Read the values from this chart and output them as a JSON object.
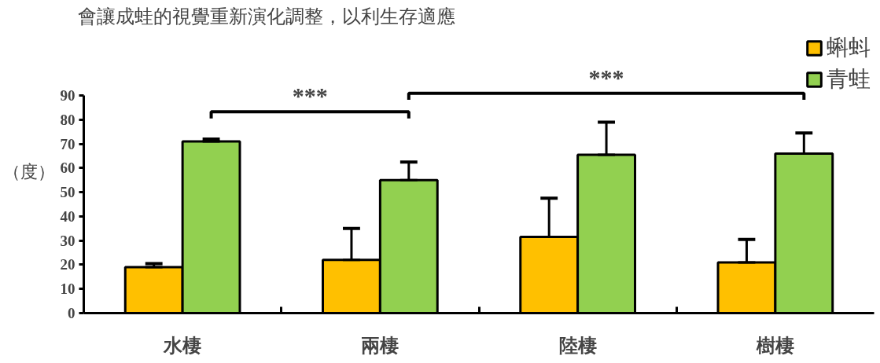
{
  "chart_data": {
    "type": "bar",
    "title": "會讓成蛙的視覺重新演化調整，以利生存適應",
    "ylabel": "（度）",
    "categories": [
      "水棲",
      "兩棲",
      "陸棲",
      "樹棲"
    ],
    "series": [
      {
        "name": "蝌蚪",
        "color": "#ffc000",
        "values": [
          19,
          22,
          31.5,
          21
        ],
        "errors": [
          [
            19,
            20.5
          ],
          [
            22,
            35
          ],
          [
            31.5,
            47.5
          ],
          [
            21,
            30.5
          ]
        ]
      },
      {
        "name": "青蛙",
        "color": "#92d050",
        "values": [
          71,
          55,
          65.5,
          66
        ],
        "errors": [
          [
            71,
            72
          ],
          [
            55,
            62.5
          ],
          [
            65.5,
            79
          ],
          [
            66,
            74.5
          ]
        ]
      }
    ],
    "ylim": [
      0,
      90
    ],
    "yticks": [
      0,
      10,
      20,
      30,
      40,
      50,
      60,
      70,
      80,
      90
    ],
    "annotations": [
      "***",
      "***"
    ],
    "grid": false,
    "legend": "top right"
  }
}
